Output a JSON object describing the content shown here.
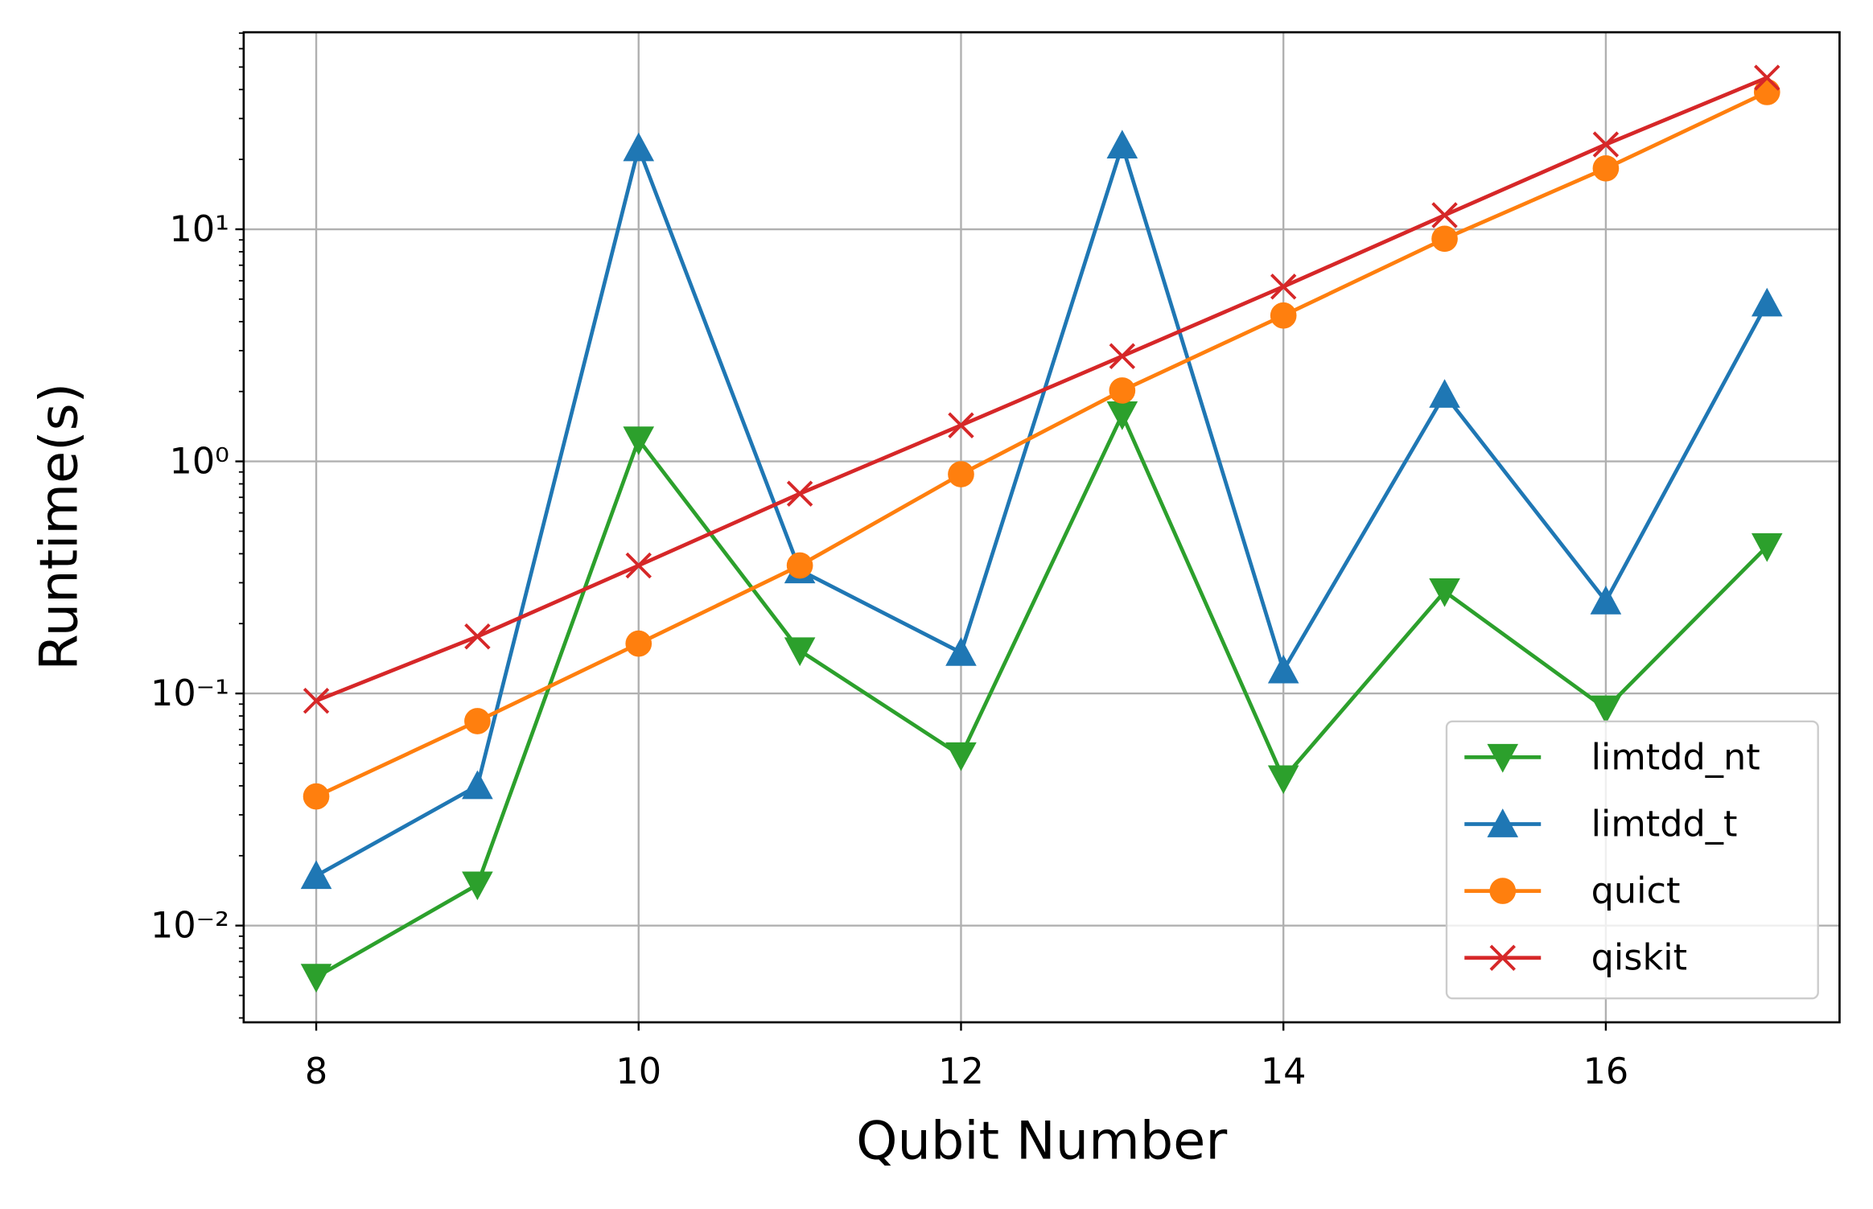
{
  "chart_data": {
    "type": "line",
    "x_label": "Qubit Number",
    "y_label": "Runtime(s)",
    "x": [
      8,
      9,
      10,
      11,
      12,
      13,
      14,
      15,
      16,
      17
    ],
    "series": [
      {
        "name": "limtdd_nt",
        "color": "#2ca02c",
        "marker": "triangle-down",
        "values": [
          0.006,
          0.015,
          1.24,
          0.153,
          0.054,
          1.59,
          0.043,
          0.275,
          0.086,
          0.43
        ]
      },
      {
        "name": "limtdd_t",
        "color": "#1f77b4",
        "marker": "triangle-up",
        "values": [
          0.0164,
          0.04,
          22.4,
          0.34,
          0.15,
          23,
          0.126,
          1.94,
          0.25,
          4.8
        ]
      },
      {
        "name": "quict",
        "color": "#ff7f0e",
        "marker": "circle",
        "values": [
          0.036,
          0.076,
          0.164,
          0.356,
          0.88,
          2.02,
          4.25,
          9.1,
          18.3,
          39
        ]
      },
      {
        "name": "qiskit",
        "color": "#d62728",
        "marker": "x",
        "values": [
          0.093,
          0.176,
          0.356,
          0.726,
          1.43,
          2.84,
          5.66,
          11.5,
          23.2,
          45
        ]
      }
    ],
    "xlim": [
      7.55,
      17.45
    ],
    "xticks": [
      8,
      10,
      12,
      14,
      16
    ],
    "ylim": [
      0.00383,
      70.6
    ],
    "log_y": true,
    "yticks": [
      {
        "value": 0.01,
        "label": "10⁻²"
      },
      {
        "value": 0.1,
        "label": "10⁻¹"
      },
      {
        "value": 1,
        "label": "10⁰"
      },
      {
        "value": 10,
        "label": "10¹"
      }
    ],
    "grid": true,
    "legend": "lower right"
  }
}
